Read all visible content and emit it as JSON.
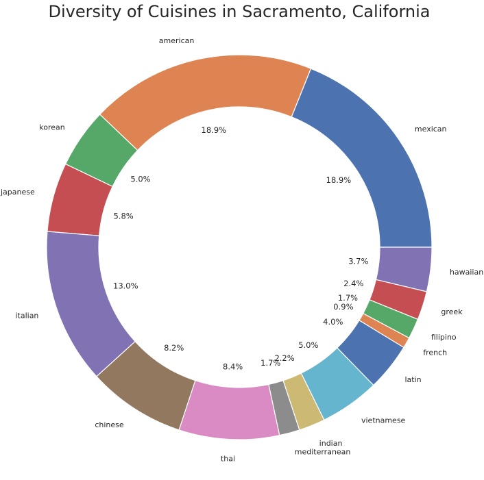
{
  "chart_data": {
    "type": "pie",
    "subtype": "donut",
    "title": "Diversity of Cuisines in Sacramento, California",
    "start_angle_deg": 0,
    "direction": "counterclockwise",
    "legend": "none",
    "slices": [
      {
        "label": "mexican",
        "value": 18.9,
        "pct_label": "18.9%",
        "color": "#4c72b0"
      },
      {
        "label": "american",
        "value": 18.9,
        "pct_label": "18.9%",
        "color": "#dd8452"
      },
      {
        "label": "korean",
        "value": 5.0,
        "pct_label": "5.0%",
        "color": "#55a868"
      },
      {
        "label": "japanese",
        "value": 5.8,
        "pct_label": "5.8%",
        "color": "#c44e52"
      },
      {
        "label": "italian",
        "value": 13.0,
        "pct_label": "13.0%",
        "color": "#8172b3"
      },
      {
        "label": "chinese",
        "value": 8.2,
        "pct_label": "8.2%",
        "color": "#937860"
      },
      {
        "label": "thai",
        "value": 8.4,
        "pct_label": "8.4%",
        "color": "#da8bc3"
      },
      {
        "label": "mediterranean",
        "value": 1.7,
        "pct_label": "1.7%",
        "color": "#8c8c8c"
      },
      {
        "label": "indian",
        "value": 2.2,
        "pct_label": "2.2%",
        "color": "#ccb974"
      },
      {
        "label": "vietnamese",
        "value": 5.0,
        "pct_label": "5.0%",
        "color": "#64b5cd"
      },
      {
        "label": "latin",
        "value": 4.0,
        "pct_label": "4.0%",
        "color": "#4c72b0"
      },
      {
        "label": "french",
        "value": 0.9,
        "pct_label": "0.9%",
        "color": "#dd8452"
      },
      {
        "label": "filipino",
        "value": 1.7,
        "pct_label": "1.7%",
        "color": "#55a868"
      },
      {
        "label": "greek",
        "value": 2.4,
        "pct_label": "2.4%",
        "color": "#c44e52"
      },
      {
        "label": "hawaiian",
        "value": 3.7,
        "pct_label": "3.7%",
        "color": "#8172b3"
      }
    ]
  }
}
